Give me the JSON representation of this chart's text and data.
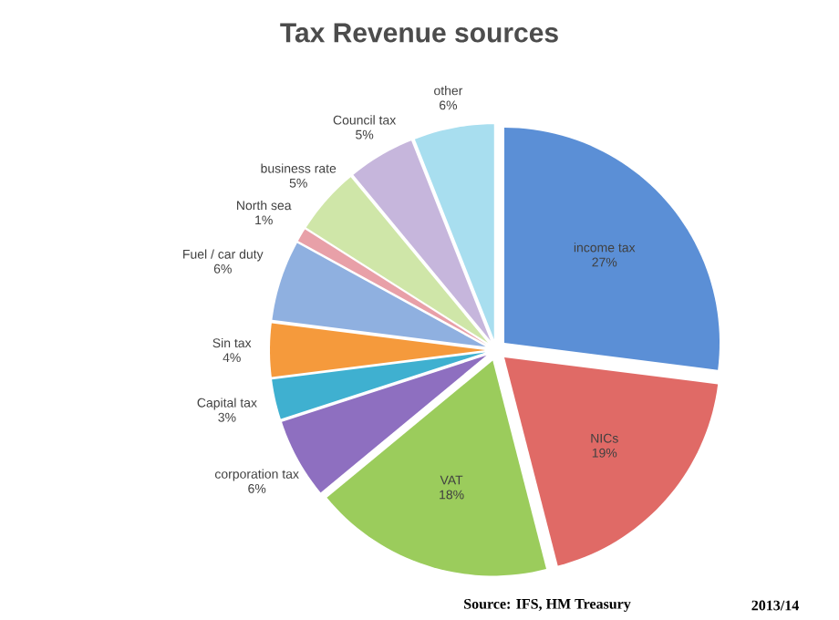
{
  "chart_data": {
    "type": "pie",
    "title": "Tax Revenue sources",
    "categories": [
      "income tax",
      "NICs",
      "VAT",
      "corporation tax",
      "Capital tax",
      "Sin tax",
      "Fuel / car duty",
      "North sea",
      "business rate",
      "Council tax",
      "other"
    ],
    "values": [
      27,
      19,
      18,
      6,
      3,
      4,
      6,
      1,
      5,
      5,
      6
    ],
    "value_labels": [
      "27%",
      "19%",
      "18%",
      "6%",
      "3%",
      "4%",
      "6%",
      "1%",
      "5%",
      "5%",
      "6%"
    ],
    "colors": [
      "#5b8fd6",
      "#e06a66",
      "#9bcc5c",
      "#8e6fc0",
      "#3fb0d0",
      "#f59a3c",
      "#8fb0e0",
      "#e8a0a8",
      "#cfe6a8",
      "#c6b6dc",
      "#a8deef"
    ],
    "annotations": [
      "Source: IFS, HM Treasury",
      "2013/14"
    ]
  }
}
